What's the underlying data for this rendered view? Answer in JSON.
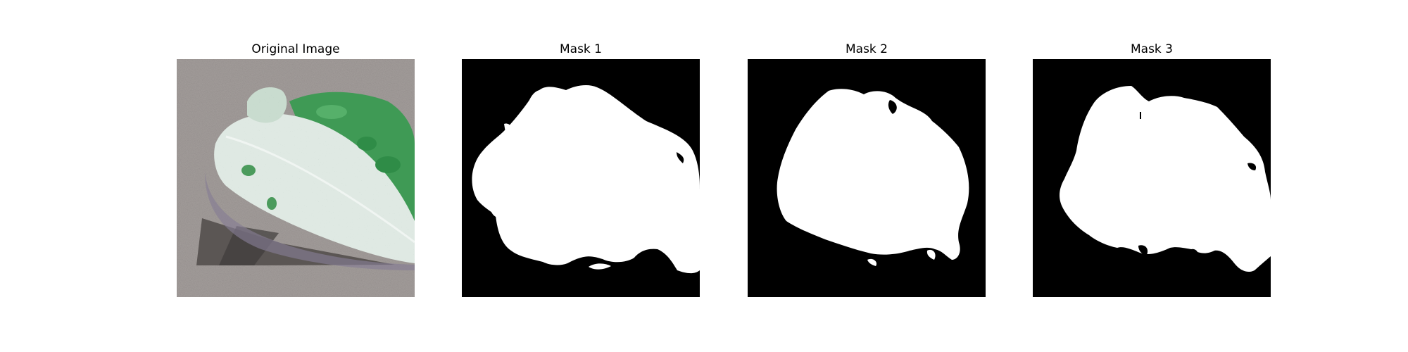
{
  "figure": {
    "panels": [
      {
        "title": "Original Image"
      },
      {
        "title": "Mask 1"
      },
      {
        "title": "Mask 2"
      },
      {
        "title": "Mask 3"
      }
    ]
  },
  "colors": {
    "background": "#ffffff",
    "mask_background": "#000000",
    "mask_foreground": "#ffffff",
    "leaf_green": "#3fa85a",
    "leaf_pale": "#dfe9e3",
    "ground_gray": "#a39d9b",
    "shadow_dark": "#5a5552"
  }
}
